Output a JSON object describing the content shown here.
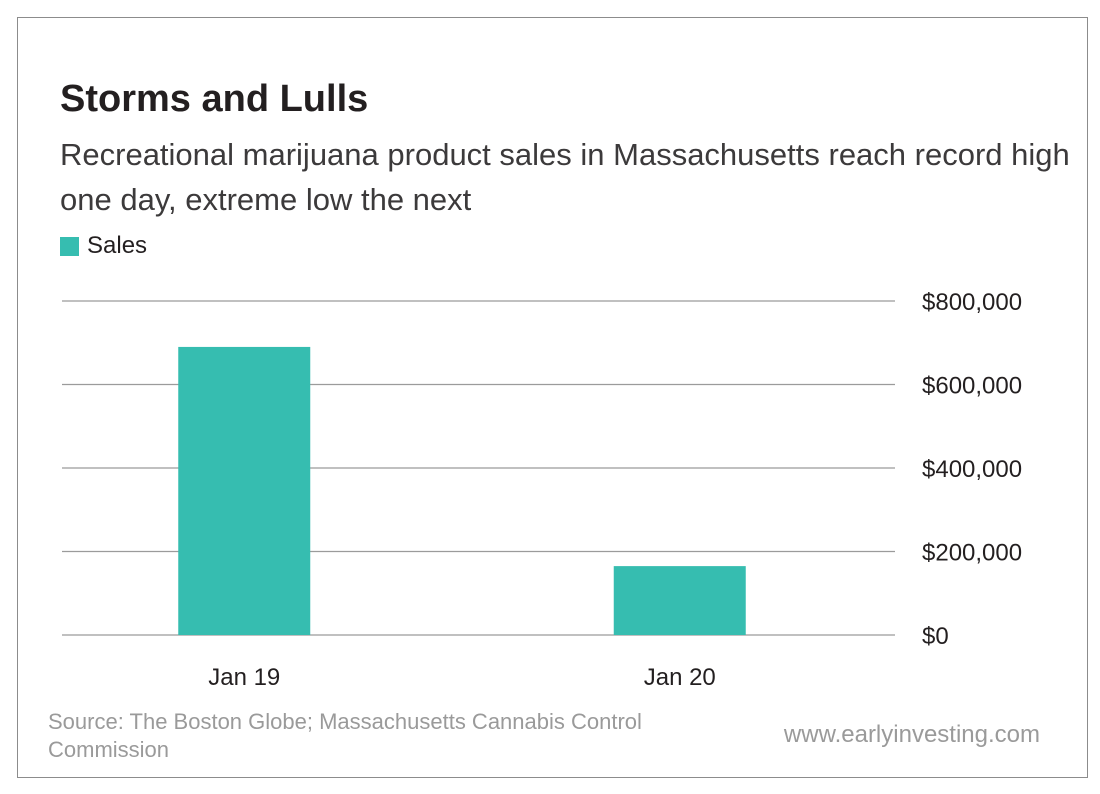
{
  "chart_data": {
    "type": "bar",
    "title": "Storms and Lulls",
    "subtitle": "Recreational marijuana product sales in Massachusetts reach record high one day, extreme low the next",
    "categories": [
      "Jan 19",
      "Jan 20"
    ],
    "series": [
      {
        "name": "Sales",
        "values": [
          690000,
          165000
        ],
        "color": "#36bdb0"
      }
    ],
    "y_axis": {
      "position": "right",
      "range": [
        0,
        800000
      ],
      "ticks": [
        0,
        200000,
        400000,
        600000,
        800000
      ],
      "tick_labels": [
        "$0",
        "$200,000",
        "$400,000",
        "$600,000",
        "$800,000"
      ]
    },
    "xlabel": "",
    "ylabel": "",
    "grid": true,
    "legend_position": "top-left"
  },
  "footer": {
    "source": "Source: The Boston Globe; Massachusetts Cannabis Control Commission",
    "website": "www.earlyinvesting.com"
  },
  "colors": {
    "bar": "#36bdb0",
    "gridline": "#9b9b9b",
    "footer_text": "#9a9a9a"
  }
}
